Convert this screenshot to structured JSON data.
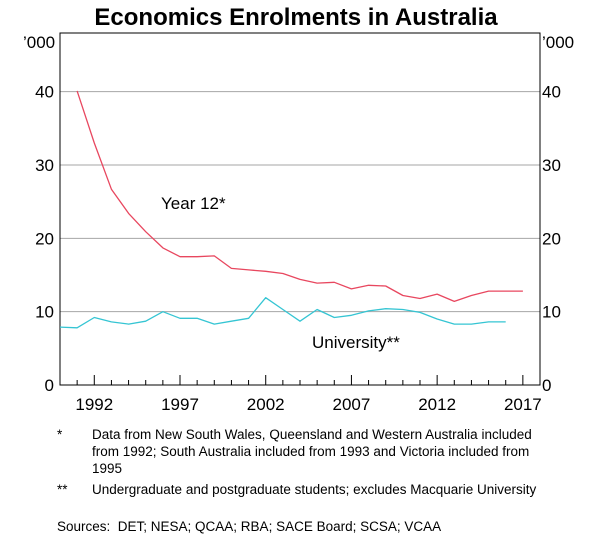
{
  "chart_data": {
    "type": "line",
    "title": "Economics Enrolments in Australia",
    "unit_left": "’000",
    "unit_right": "’000",
    "ylim": [
      0,
      48
    ],
    "yticks": [
      0,
      10,
      20,
      30,
      40
    ],
    "xlim": [
      1990,
      2018
    ],
    "xticks": [
      1992,
      1997,
      2002,
      2007,
      2012,
      2017
    ],
    "xticks_minor": [
      1991,
      1992,
      1993,
      1994,
      1995,
      1996,
      1997,
      1998,
      1999,
      2000,
      2001,
      2002,
      2003,
      2004,
      2005,
      2006,
      2007,
      2008,
      2009,
      2010,
      2011,
      2012,
      2013,
      2014,
      2015,
      2016,
      2017
    ],
    "grid": true,
    "series": [
      {
        "name": "Year 12*",
        "color": "#e8475f",
        "x": [
          1991,
          1992,
          1993,
          1994,
          1995,
          1996,
          1997,
          1998,
          1999,
          2000,
          2001,
          2002,
          2003,
          2004,
          2005,
          2006,
          2007,
          2008,
          2009,
          2010,
          2011,
          2012,
          2013,
          2014,
          2015,
          2016,
          2017
        ],
        "values": [
          40.1,
          33.0,
          26.7,
          23.4,
          20.9,
          18.7,
          17.5,
          17.5,
          17.6,
          15.9,
          15.7,
          15.5,
          15.2,
          14.4,
          13.9,
          14.0,
          13.1,
          13.6,
          13.5,
          12.2,
          11.8,
          12.4,
          11.4,
          12.2,
          12.8,
          12.8,
          12.8
        ]
      },
      {
        "name": "University**",
        "color": "#35c5d3",
        "x": [
          1990,
          1991,
          1992,
          1993,
          1994,
          1995,
          1996,
          1997,
          1998,
          1999,
          2000,
          2001,
          2002,
          2003,
          2004,
          2005,
          2006,
          2007,
          2008,
          2009,
          2010,
          2011,
          2012,
          2013,
          2014,
          2015,
          2016
        ],
        "values": [
          7.9,
          7.8,
          9.2,
          8.6,
          8.3,
          8.7,
          10.0,
          9.1,
          9.1,
          8.3,
          8.7,
          9.1,
          11.9,
          10.3,
          8.7,
          10.3,
          9.2,
          9.5,
          10.1,
          10.4,
          10.3,
          9.9,
          9.0,
          8.3,
          8.3,
          8.6,
          8.6
        ]
      }
    ],
    "annotations": [
      {
        "text": "Year 12*",
        "series": 0
      },
      {
        "text": "University**",
        "series": 1
      }
    ]
  },
  "notes": [
    {
      "marker": "*",
      "text": "Data from New South Wales, Queensland and Western Australia included from 1992; South Australia included from 1993 and Victoria included from 1995"
    },
    {
      "marker": "**",
      "text": "Undergraduate and postgraduate students; excludes Macquarie University"
    }
  ],
  "sources": "Sources:  DET; NESA; QCAA; RBA; SACE Board; SCSA; VCAA"
}
